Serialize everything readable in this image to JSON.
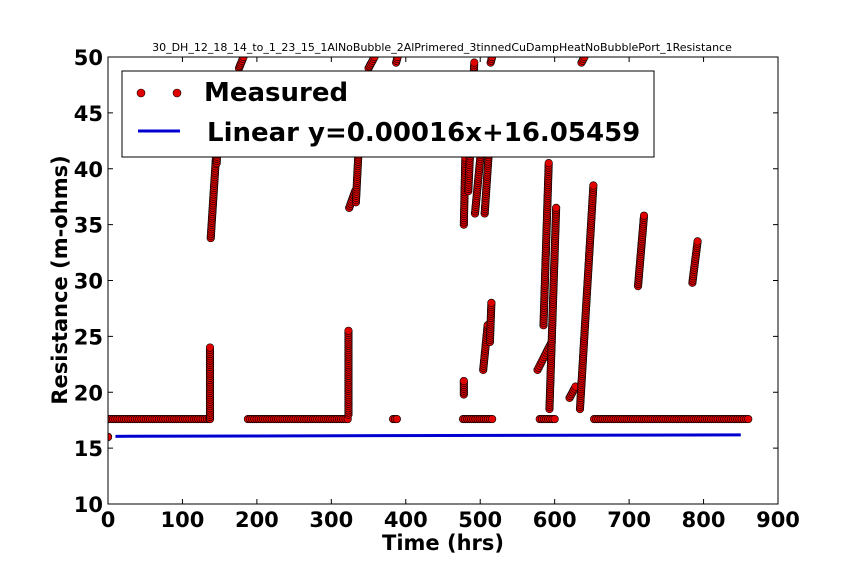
{
  "chart_data": {
    "type": "scatter",
    "title": "30_DH_12_18_14_to_1_23_15_1AlNoBubble_2AlPrimered_3tinnedCuDampHeatNoBubblePort_1Resistance",
    "xlabel": "Time (hrs)",
    "ylabel": "Resistance (m-ohms)",
    "xlim": [
      0,
      900
    ],
    "ylim": [
      10,
      50
    ],
    "xticks": [
      "0",
      "100",
      "200",
      "300",
      "400",
      "500",
      "600",
      "700",
      "800",
      "900"
    ],
    "yticks": [
      "10",
      "15",
      "20",
      "25",
      "30",
      "35",
      "40",
      "45",
      "50"
    ],
    "grid": false,
    "legend_position": "top-left",
    "colors": {
      "measured": "#e00000",
      "measured_edge": "#000000",
      "fit": "#0000d0"
    },
    "series": [
      {
        "name": "Measured",
        "kind": "markers",
        "segments": [
          {
            "x": [
              0,
              0
            ],
            "y": [
              16.0,
              16.0
            ]
          },
          {
            "x": [
              1,
              136
            ],
            "y": [
              17.6,
              17.6
            ]
          },
          {
            "x": [
              137,
              137
            ],
            "y": [
              17.6,
              24.0
            ]
          },
          {
            "x": [
              138,
              145
            ],
            "y": [
              33.8,
              41.0
            ]
          },
          {
            "x": [
              146,
              149
            ],
            "y": [
              40.5,
              45.0
            ]
          },
          {
            "x": [
              176,
              182
            ],
            "y": [
              49.0,
              50.0
            ]
          },
          {
            "x": [
              188,
              322
            ],
            "y": [
              17.6,
              17.6
            ]
          },
          {
            "x": [
              323,
              323
            ],
            "y": [
              18.0,
              25.5
            ]
          },
          {
            "x": [
              324,
              332
            ],
            "y": [
              36.5,
              38.0
            ]
          },
          {
            "x": [
              333,
              338
            ],
            "y": [
              37.0,
              43.5
            ]
          },
          {
            "x": [
              350,
              358
            ],
            "y": [
              49.0,
              50.0
            ]
          },
          {
            "x": [
              383,
              388
            ],
            "y": [
              17.6,
              17.6
            ]
          },
          {
            "x": [
              387,
              389
            ],
            "y": [
              49.5,
              50.0
            ]
          },
          {
            "x": [
              477,
              516
            ],
            "y": [
              17.6,
              17.6
            ]
          },
          {
            "x": [
              478,
              478
            ],
            "y": [
              19.8,
              21.0
            ]
          },
          {
            "x": [
              478,
              480
            ],
            "y": [
              35.0,
              41.0
            ]
          },
          {
            "x": [
              484,
              492
            ],
            "y": [
              38.0,
              49.5
            ]
          },
          {
            "x": [
              493,
              503
            ],
            "y": [
              36.0,
              43.0
            ]
          },
          {
            "x": [
              504,
              510
            ],
            "y": [
              22.0,
              26.0
            ]
          },
          {
            "x": [
              506,
              512
            ],
            "y": [
              36.0,
              42.0
            ]
          },
          {
            "x": [
              513,
              515
            ],
            "y": [
              24.5,
              28.0
            ]
          },
          {
            "x": [
              514,
              516
            ],
            "y": [
              49.5,
              50.0
            ]
          },
          {
            "x": [
              577,
              596
            ],
            "y": [
              22.0,
              24.5
            ]
          },
          {
            "x": [
              580,
              600
            ],
            "y": [
              17.6,
              17.6
            ]
          },
          {
            "x": [
              585,
              592
            ],
            "y": [
              26.0,
              40.5
            ]
          },
          {
            "x": [
              593,
              602
            ],
            "y": [
              18.5,
              36.5
            ]
          },
          {
            "x": [
              620,
              628
            ],
            "y": [
              19.5,
              20.5
            ]
          },
          {
            "x": [
              634,
              652
            ],
            "y": [
              18.5,
              38.5
            ]
          },
          {
            "x": [
              636,
              640
            ],
            "y": [
              49.5,
              50.0
            ]
          },
          {
            "x": [
              653,
              860
            ],
            "y": [
              17.6,
              17.6
            ]
          },
          {
            "x": [
              712,
              720
            ],
            "y": [
              29.5,
              35.8
            ]
          },
          {
            "x": [
              785,
              792
            ],
            "y": [
              29.8,
              33.5
            ]
          }
        ]
      },
      {
        "name": "Linear y=0.00016x+16.05459",
        "kind": "line",
        "slope": 0.00016,
        "intercept": 16.05459,
        "x_range": [
          10,
          850
        ]
      }
    ]
  }
}
